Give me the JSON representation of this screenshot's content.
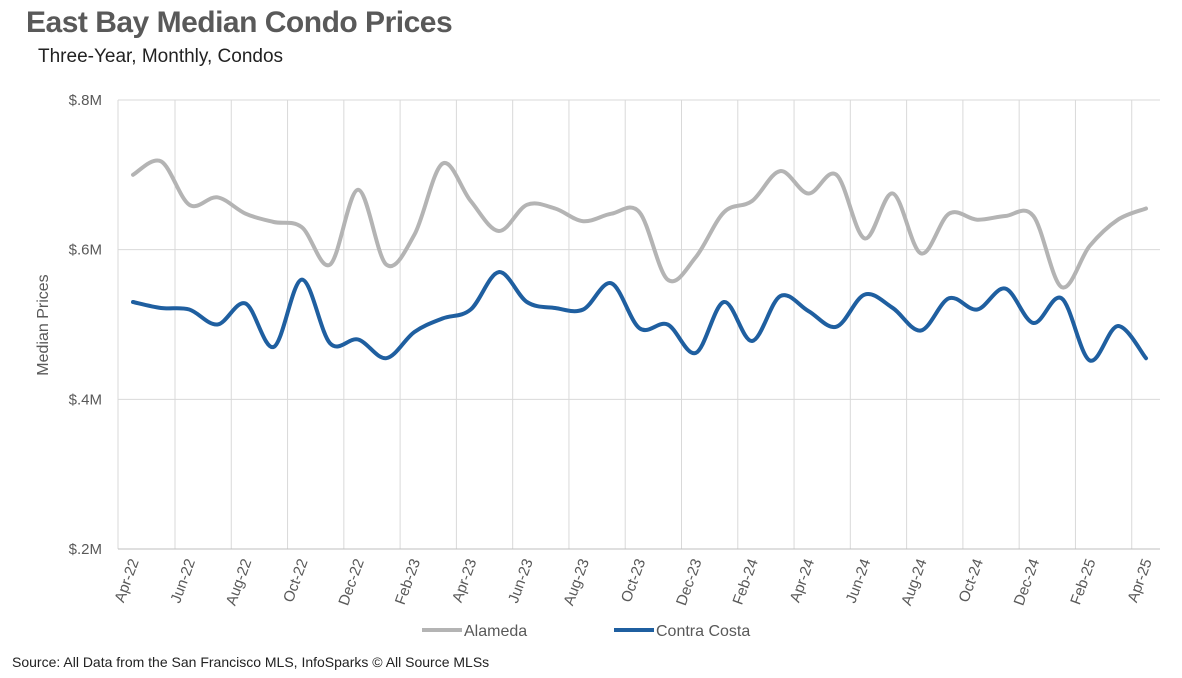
{
  "chart_data": {
    "type": "line",
    "title": "East Bay Median Condo Prices",
    "subtitle": "Three-Year, Monthly, Condos",
    "ylabel": "Median Prices",
    "xlabel": "",
    "ylim": [
      200000,
      800000
    ],
    "yticks": [
      {
        "value": 200000,
        "label": "$.2M"
      },
      {
        "value": 400000,
        "label": "$.4M"
      },
      {
        "value": 600000,
        "label": "$.6M"
      },
      {
        "value": 800000,
        "label": "$.8M"
      }
    ],
    "grid": true,
    "legend_position": "bottom",
    "x": [
      "Apr-22",
      "May-22",
      "Jun-22",
      "Jul-22",
      "Aug-22",
      "Sep-22",
      "Oct-22",
      "Nov-22",
      "Dec-22",
      "Jan-23",
      "Feb-23",
      "Mar-23",
      "Apr-23",
      "May-23",
      "Jun-23",
      "Jul-23",
      "Aug-23",
      "Sep-23",
      "Oct-23",
      "Nov-23",
      "Dec-23",
      "Jan-24",
      "Feb-24",
      "Mar-24",
      "Apr-24",
      "May-24",
      "Jun-24",
      "Jul-24",
      "Aug-24",
      "Sep-24",
      "Oct-24",
      "Nov-24",
      "Dec-24",
      "Jan-25",
      "Feb-25",
      "Mar-25",
      "Apr-25"
    ],
    "tick_labels": [
      "Apr-22",
      "Jun-22",
      "Aug-22",
      "Oct-22",
      "Dec-22",
      "Feb-23",
      "Apr-23",
      "Jun-23",
      "Aug-23",
      "Oct-23",
      "Dec-23",
      "Feb-24",
      "Apr-24",
      "Jun-24",
      "Aug-24",
      "Oct-24",
      "Dec-24",
      "Feb-25",
      "Apr-25"
    ],
    "series": [
      {
        "name": "Alameda",
        "color": "#b4b4b4",
        "values": [
          700000,
          718000,
          660000,
          670000,
          648000,
          637000,
          630000,
          580000,
          680000,
          580000,
          620000,
          715000,
          665000,
          625000,
          660000,
          655000,
          638000,
          648000,
          650000,
          560000,
          590000,
          650000,
          665000,
          705000,
          675000,
          700000,
          615000,
          675000,
          595000,
          648000,
          640000,
          645000,
          645000,
          550000,
          605000,
          640000,
          655000
        ]
      },
      {
        "name": "Contra Costa",
        "color": "#1f5fa0",
        "values": [
          530000,
          522000,
          520000,
          500000,
          528000,
          470000,
          560000,
          475000,
          480000,
          455000,
          490000,
          508000,
          520000,
          570000,
          530000,
          522000,
          520000,
          555000,
          495000,
          500000,
          462000,
          530000,
          478000,
          538000,
          518000,
          497000,
          540000,
          522000,
          492000,
          535000,
          520000,
          548000,
          502000,
          535000,
          452000,
          498000,
          455000
        ]
      }
    ]
  },
  "footer": {
    "source": "Source: All Data from the San Francisco MLS, InfoSparks © All Source MLSs"
  }
}
